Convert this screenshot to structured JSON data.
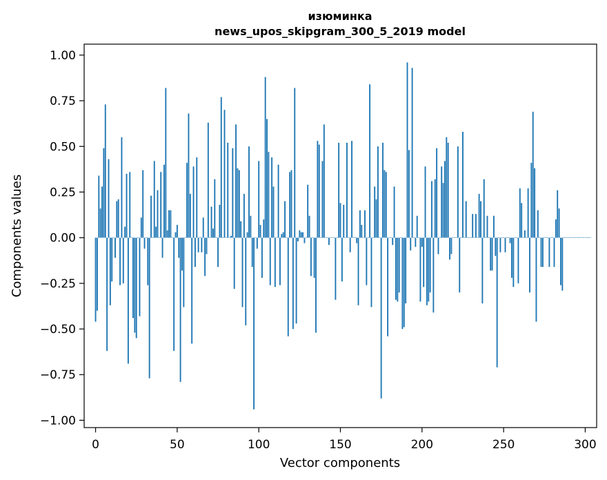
{
  "chart_data": {
    "type": "bar",
    "title": "изюминка",
    "subtitle": "news_upos_skipgram_300_5_2019 model",
    "xlabel": "Vector components",
    "ylabel": "Components values",
    "xlim": [
      -7,
      307
    ],
    "ylim": [
      -1.04,
      1.06
    ],
    "xticks": [
      0,
      50,
      100,
      150,
      200,
      250,
      300
    ],
    "xtick_labels": [
      "0",
      "50",
      "100",
      "150",
      "200",
      "250",
      "300"
    ],
    "yticks": [
      1.0,
      0.75,
      0.5,
      0.25,
      0.0,
      -0.25,
      -0.5,
      -0.75,
      -1.0
    ],
    "ytick_labels": [
      "1.00",
      "0.75",
      "0.50",
      "0.25",
      "0.00",
      "−0.25",
      "−0.50",
      "−0.75",
      "−1.00"
    ],
    "bar_color": "#1f77b4",
    "values": [
      -0.46,
      -0.4,
      0.34,
      0.16,
      0.28,
      0.49,
      0.73,
      -0.62,
      0.43,
      -0.37,
      -0.24,
      0.0,
      -0.11,
      0.2,
      0.21,
      -0.26,
      0.55,
      -0.25,
      0.06,
      0.35,
      -0.69,
      0.36,
      0.0,
      -0.44,
      -0.52,
      -0.55,
      0.0,
      -0.43,
      0.11,
      0.37,
      -0.06,
      0.0,
      -0.26,
      -0.77,
      0.23,
      0.0,
      0.42,
      0.06,
      0.26,
      0.0,
      0.36,
      -0.11,
      0.4,
      0.82,
      0.04,
      0.15,
      0.15,
      0.0,
      -0.62,
      0.03,
      0.07,
      -0.11,
      -0.79,
      -0.18,
      -0.38,
      0.0,
      0.41,
      0.68,
      0.24,
      -0.58,
      0.39,
      -0.16,
      0.44,
      -0.08,
      0.0,
      -0.08,
      0.11,
      -0.21,
      -0.09,
      0.63,
      0.0,
      0.17,
      0.05,
      0.32,
      0.0,
      -0.16,
      0.18,
      0.77,
      0.0,
      0.7,
      0.0,
      0.52,
      0.0,
      0.01,
      0.49,
      -0.28,
      0.62,
      0.38,
      0.37,
      0.09,
      -0.38,
      0.24,
      -0.48,
      0.03,
      0.5,
      0.12,
      -0.16,
      -0.94,
      0.0,
      -0.06,
      0.42,
      0.07,
      -0.22,
      0.1,
      0.88,
      0.65,
      0.47,
      -0.26,
      0.44,
      0.28,
      -0.27,
      0.0,
      0.4,
      -0.26,
      0.02,
      0.03,
      0.2,
      0.0,
      -0.54,
      0.36,
      0.37,
      -0.5,
      0.82,
      -0.47,
      -0.02,
      0.04,
      0.03,
      0.03,
      -0.03,
      0.0,
      0.29,
      0.12,
      -0.21,
      0.0,
      -0.22,
      -0.52,
      0.53,
      0.51,
      0.0,
      0.42,
      0.62,
      0.0,
      0.0,
      -0.04,
      0.0,
      0.0,
      0.0,
      -0.34,
      0.0,
      0.52,
      0.19,
      -0.24,
      0.18,
      0.0,
      0.52,
      0.0,
      -0.08,
      0.53,
      0.0,
      0.0,
      -0.03,
      -0.37,
      0.15,
      0.07,
      0.0,
      0.15,
      -0.26,
      0.0,
      0.84,
      -0.38,
      0.0,
      0.28,
      0.21,
      0.5,
      0.0,
      -0.88,
      0.52,
      0.37,
      0.36,
      -0.54,
      0.0,
      0.0,
      -0.04,
      0.28,
      -0.34,
      -0.35,
      -0.3,
      0.0,
      -0.5,
      -0.49,
      -0.36,
      0.96,
      0.48,
      -0.07,
      0.93,
      0.0,
      -0.05,
      0.12,
      0.0,
      -0.35,
      -0.05,
      -0.27,
      0.39,
      -0.37,
      -0.35,
      -0.3,
      0.31,
      -0.41,
      0.32,
      0.49,
      -0.09,
      0.0,
      0.39,
      0.3,
      0.42,
      0.55,
      0.52,
      -0.12,
      -0.09,
      0.0,
      0.0,
      0.0,
      0.5,
      -0.3,
      0.0,
      0.58,
      0.0,
      0.2,
      0.0,
      0.0,
      0.0,
      0.13,
      0.0,
      0.13,
      0.0,
      0.24,
      0.2,
      -0.36,
      0.32,
      0.0,
      0.12,
      0.0,
      -0.18,
      -0.18,
      0.12,
      -0.1,
      -0.71,
      0.0,
      -0.08,
      0.0,
      0.0,
      -0.08,
      0.0,
      0.0,
      -0.03,
      -0.22,
      -0.27,
      0.0,
      0.0,
      -0.25,
      0.27,
      0.19,
      0.0,
      0.04,
      0.0,
      0.27,
      -0.3,
      0.41,
      0.69,
      0.38,
      -0.46,
      0.15,
      0.0,
      -0.16,
      -0.16,
      0.0,
      0.0,
      0.0,
      -0.16,
      0.0,
      0.0,
      -0.16,
      0.1,
      0.26,
      0.16,
      -0.26,
      -0.29,
      0.0,
      0.0,
      0.0,
      0.0,
      0.0,
      0.0,
      0.0,
      0.0,
      0.0,
      0.0,
      0.0,
      0.0,
      0.0,
      0.0,
      0.0,
      0.0,
      0.0
    ]
  }
}
